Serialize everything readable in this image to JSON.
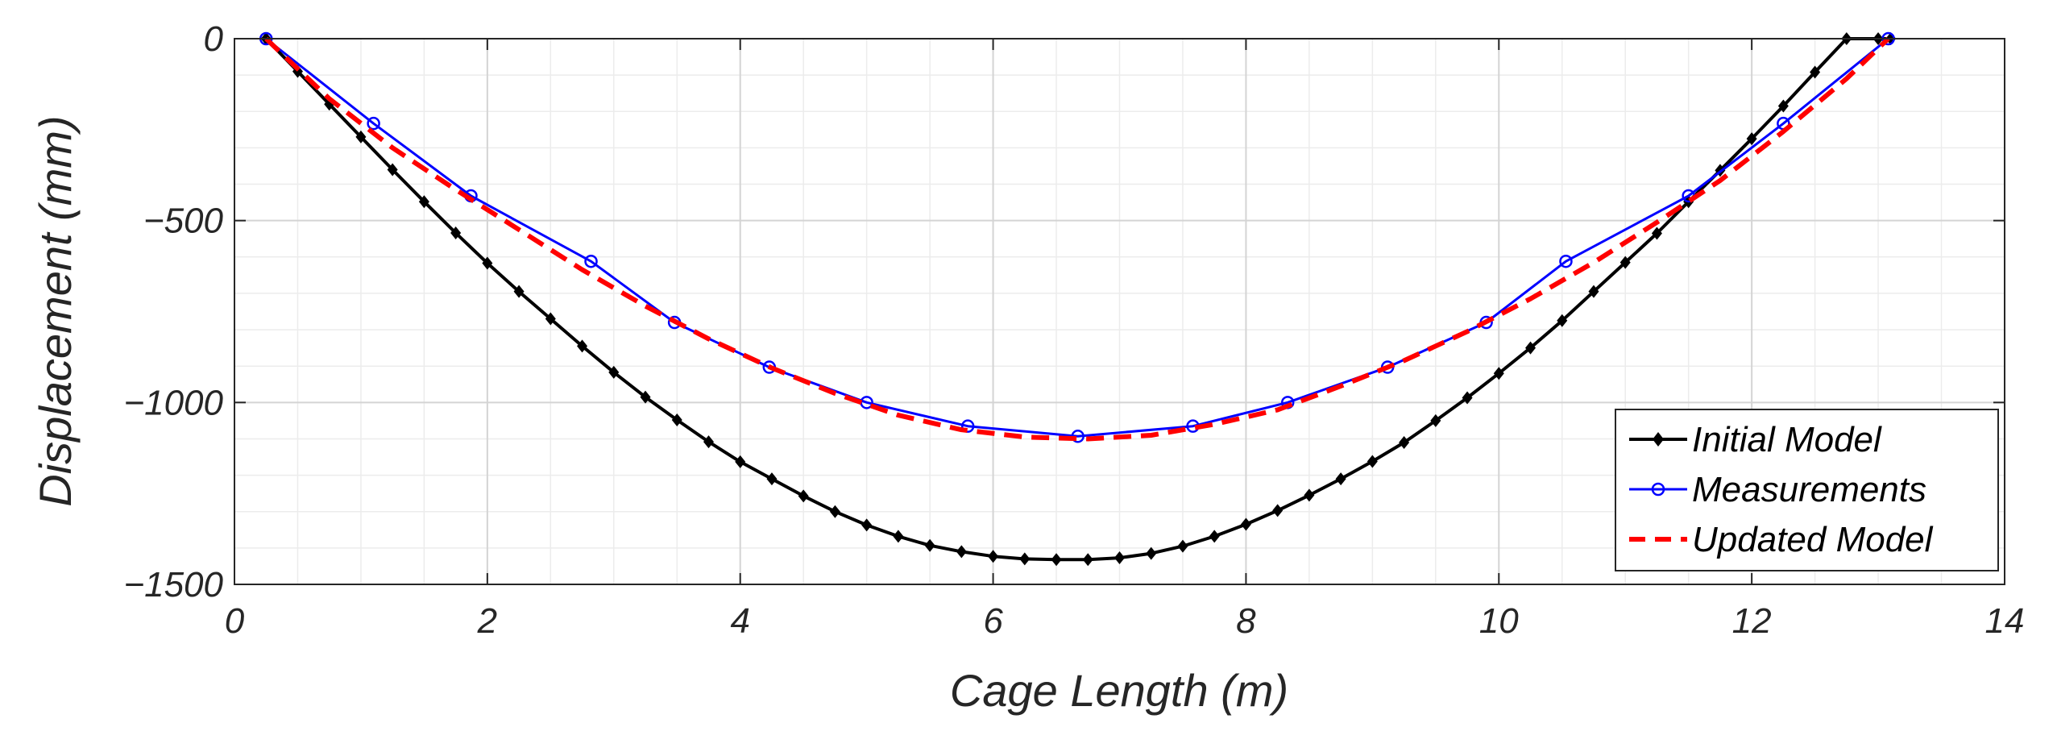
{
  "chart_data": {
    "type": "line",
    "title": "",
    "xlabel": "Cage Length (m)",
    "ylabel": "Displacement (mm)",
    "xlim": [
      0,
      14
    ],
    "ylim": [
      -1500,
      0
    ],
    "xticks": [
      0,
      2,
      4,
      6,
      8,
      10,
      12,
      14
    ],
    "yticks": [
      0,
      -500,
      -1000,
      -1500
    ],
    "xtick_labels": [
      "0",
      "2",
      "4",
      "6",
      "8",
      "10",
      "12",
      "14"
    ],
    "ytick_labels": [
      "0",
      "−500",
      "−1000",
      "−1500"
    ],
    "grid": true,
    "minor_grid": true,
    "legend_position": "bottom-right",
    "series": [
      {
        "name": "Initial Model",
        "color": "#000000",
        "line_style": "solid",
        "marker": "diamond",
        "x": [
          0.25,
          0.5,
          0.75,
          1.0,
          1.25,
          1.5,
          1.75,
          2.0,
          2.25,
          2.5,
          2.75,
          3.0,
          3.25,
          3.5,
          3.75,
          4.0,
          4.25,
          4.5,
          4.75,
          5.0,
          5.25,
          5.5,
          5.75,
          6.0,
          6.25,
          6.5,
          6.75,
          7.0,
          7.25,
          7.5,
          7.75,
          8.0,
          8.25,
          8.5,
          8.75,
          9.0,
          9.25,
          9.5,
          9.75,
          10.0,
          10.25,
          10.5,
          10.75,
          11.0,
          11.25,
          11.5,
          11.75,
          12.0,
          12.25,
          12.5,
          12.75,
          13.0,
          13.1
        ],
        "y": [
          0,
          -90,
          -180,
          -270,
          -360,
          -448,
          -534,
          -617,
          -695,
          -770,
          -845,
          -917,
          -985,
          -1048,
          -1108,
          -1163,
          -1210,
          -1257,
          -1300,
          -1337,
          -1368,
          -1393,
          -1410,
          -1423,
          -1430,
          -1432,
          -1432,
          -1427,
          -1415,
          -1395,
          -1368,
          -1335,
          -1297,
          -1255,
          -1210,
          -1162,
          -1110,
          -1050,
          -987,
          -920,
          -850,
          -775,
          -695,
          -615,
          -535,
          -448,
          -362,
          -275,
          -185,
          -92,
          0,
          0,
          0
        ]
      },
      {
        "name": "Measurements",
        "color": "#0000ff",
        "line_style": "solid",
        "marker": "circle",
        "x": [
          0.25,
          1.1,
          1.87,
          2.82,
          3.48,
          4.23,
          5.0,
          5.8,
          6.67,
          7.58,
          8.33,
          9.12,
          9.9,
          10.53,
          11.5,
          12.25,
          13.08
        ],
        "y": [
          0,
          -233,
          -432,
          -612,
          -780,
          -903,
          -1000,
          -1065,
          -1093,
          -1065,
          -1000,
          -903,
          -780,
          -612,
          -432,
          -233,
          0
        ]
      },
      {
        "name": "Updated Model",
        "color": "#ff0000",
        "line_style": "dashed",
        "marker": "none",
        "x": [
          0.25,
          0.75,
          1.25,
          1.75,
          2.25,
          2.75,
          3.25,
          3.75,
          4.25,
          4.75,
          5.25,
          5.75,
          6.25,
          6.75,
          7.25,
          7.75,
          8.25,
          8.75,
          9.25,
          9.75,
          10.25,
          10.75,
          11.25,
          11.75,
          12.25,
          12.75,
          13.08
        ],
        "y": [
          0,
          -165,
          -300,
          -415,
          -525,
          -635,
          -735,
          -825,
          -905,
          -975,
          -1035,
          -1075,
          -1095,
          -1100,
          -1090,
          -1060,
          -1020,
          -955,
          -885,
          -805,
          -715,
          -615,
          -505,
          -390,
          -255,
          -110,
          0
        ]
      }
    ]
  }
}
